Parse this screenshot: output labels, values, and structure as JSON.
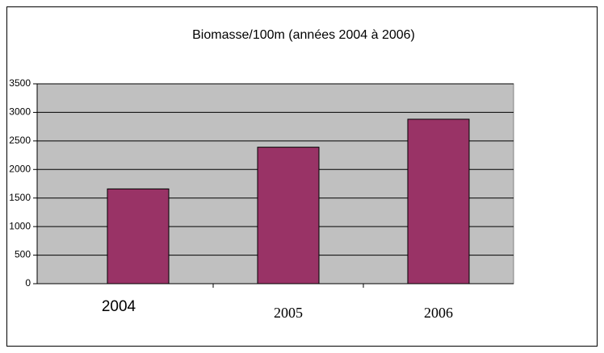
{
  "chart_data": {
    "type": "bar",
    "title": "Biomasse/100m (années 2004 à 2006)",
    "categories": [
      "2004",
      "2005",
      "2006"
    ],
    "values": [
      1660,
      2390,
      2880
    ],
    "color": "#993366",
    "ylim": [
      0,
      3500
    ],
    "yticks": [
      0,
      500,
      1000,
      1500,
      2000,
      2500,
      3000,
      3500
    ],
    "grid": true
  }
}
